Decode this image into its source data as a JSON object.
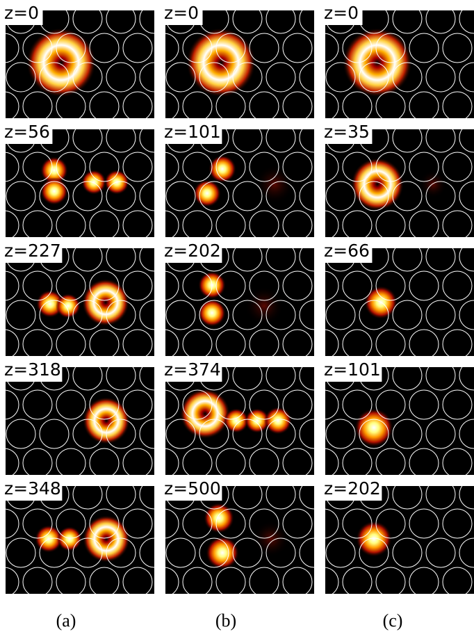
{
  "columns": [
    {
      "caption": "(a)",
      "panels": [
        "z=0",
        "z=56",
        "z=227",
        "z=318",
        "z=348"
      ]
    },
    {
      "caption": "(b)",
      "panels": [
        "z=0",
        "z=101",
        "z=202",
        "z=374",
        "z=500"
      ]
    },
    {
      "caption": "(c)",
      "panels": [
        "z=0",
        "z=35",
        "z=66",
        "z=101",
        "z=202"
      ]
    }
  ]
}
